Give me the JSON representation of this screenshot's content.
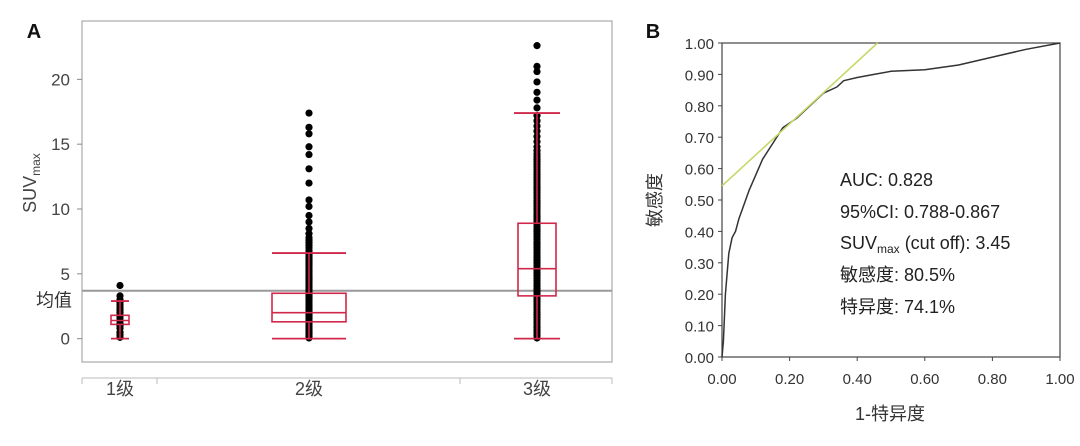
{
  "chart_data": [
    {
      "panel_label": "A",
      "type": "box",
      "ylabel_main": "SUV",
      "ylabel_sub": "max",
      "y_ticks": [
        0,
        5,
        10,
        15,
        20
      ],
      "ylim": [
        -1.8,
        24.5
      ],
      "categories": [
        "1级",
        "2级",
        "3级"
      ],
      "mean_line": {
        "label": "均值",
        "value": 3.7
      },
      "boxes": [
        {
          "category": "1级",
          "min": 0,
          "q1": 1.1,
          "median": 1.4,
          "q3": 1.8,
          "max": 2.9,
          "points": [
            0.1,
            0.3,
            0.5,
            0.8,
            1.0,
            1.2,
            1.4,
            1.6,
            1.8,
            2.0,
            2.2,
            2.4,
            2.6,
            2.8,
            3.0,
            3.3,
            4.1
          ]
        },
        {
          "category": "2级",
          "min": 0,
          "q1": 1.3,
          "median": 2.0,
          "q3": 3.5,
          "max": 6.6,
          "points": [
            0.05,
            0.2,
            0.35,
            0.5,
            0.65,
            0.8,
            0.95,
            1.1,
            1.25,
            1.4,
            1.55,
            1.7,
            1.85,
            2.0,
            2.15,
            2.3,
            2.45,
            2.6,
            2.75,
            2.9,
            3.05,
            3.2,
            3.35,
            3.5,
            3.65,
            3.8,
            3.95,
            4.1,
            4.25,
            4.4,
            4.55,
            4.7,
            4.85,
            5.0,
            5.15,
            5.3,
            5.45,
            5.6,
            5.75,
            5.9,
            6.05,
            6.2,
            6.35,
            6.5,
            6.65,
            6.8,
            7.0,
            7.2,
            7.4,
            7.6,
            7.8,
            8.1,
            8.5,
            9.0,
            9.5,
            10.2,
            10.7,
            12.0,
            13.1,
            14.2,
            14.8,
            15.8,
            16.3,
            17.4
          ]
        },
        {
          "category": "3级",
          "min": 0,
          "q1": 3.3,
          "median": 5.4,
          "q3": 8.9,
          "max": 17.4,
          "points": [
            0.05,
            0.25,
            0.45,
            0.65,
            0.85,
            1.05,
            1.25,
            1.45,
            1.65,
            1.85,
            2.05,
            2.25,
            2.45,
            2.65,
            2.85,
            3.05,
            3.25,
            3.45,
            3.65,
            3.85,
            4.05,
            4.25,
            4.45,
            4.65,
            4.85,
            5.05,
            5.25,
            5.45,
            5.65,
            5.85,
            6.05,
            6.25,
            6.45,
            6.65,
            6.85,
            7.05,
            7.25,
            7.45,
            7.65,
            7.85,
            8.05,
            8.25,
            8.45,
            8.65,
            8.85,
            9.05,
            9.25,
            9.45,
            9.65,
            9.85,
            10.05,
            10.25,
            10.45,
            10.65,
            10.85,
            11.05,
            11.25,
            11.45,
            11.65,
            11.85,
            12.05,
            12.25,
            12.45,
            12.65,
            12.85,
            13.05,
            13.25,
            13.45,
            13.65,
            13.85,
            14.05,
            14.25,
            14.5,
            14.8,
            15.2,
            15.6,
            16.0,
            16.4,
            16.8,
            17.2,
            17.8,
            18.4,
            19.0,
            19.8,
            20.6,
            21.0,
            22.6
          ]
        }
      ]
    },
    {
      "panel_label": "B",
      "type": "line",
      "xlabel": "1-特异度",
      "ylabel": "敏感度",
      "xlim": [
        0,
        1
      ],
      "ylim": [
        0,
        1
      ],
      "x_ticks": [
        "0.00",
        "0.20",
        "0.40",
        "0.60",
        "0.80",
        "1.00"
      ],
      "y_ticks": [
        "0.00",
        "0.10",
        "0.20",
        "0.30",
        "0.40",
        "0.50",
        "0.60",
        "0.70",
        "0.80",
        "0.90",
        "1.00"
      ],
      "series": [
        {
          "role": "roc_curve",
          "color": "#333333",
          "x": [
            0,
            0.004,
            0.01,
            0.02,
            0.03,
            0.04,
            0.05,
            0.06,
            0.08,
            0.1,
            0.12,
            0.15,
            0.18,
            0.22,
            0.26,
            0.3,
            0.34,
            0.36,
            0.4,
            0.45,
            0.5,
            0.6,
            0.7,
            0.8,
            0.9,
            1.0
          ],
          "y": [
            0,
            0.05,
            0.2,
            0.33,
            0.38,
            0.4,
            0.44,
            0.47,
            0.53,
            0.58,
            0.63,
            0.68,
            0.73,
            0.76,
            0.8,
            0.84,
            0.86,
            0.88,
            0.89,
            0.9,
            0.91,
            0.915,
            0.93,
            0.955,
            0.98,
            1.0
          ]
        },
        {
          "role": "tangent_line",
          "color": "#c8d86a",
          "x": [
            0,
            0.46
          ],
          "y": [
            0.545,
            1.0
          ]
        }
      ],
      "annotations": [
        {
          "text": "AUC: 0.828"
        },
        {
          "text": "95%CI: 0.788-0.867"
        },
        {
          "text_main": "SUV",
          "text_sub": "max",
          "text_rest": " (cut off): 3.45"
        },
        {
          "text": "敏感度: 80.5%"
        },
        {
          "text": "特异度: 74.1%"
        }
      ]
    }
  ],
  "colors": {
    "box": "#d0284a",
    "dot": "#000000",
    "axis": "#888888",
    "mean_line": "#999999",
    "frame": "#aaaaaa",
    "text": "#333333"
  }
}
